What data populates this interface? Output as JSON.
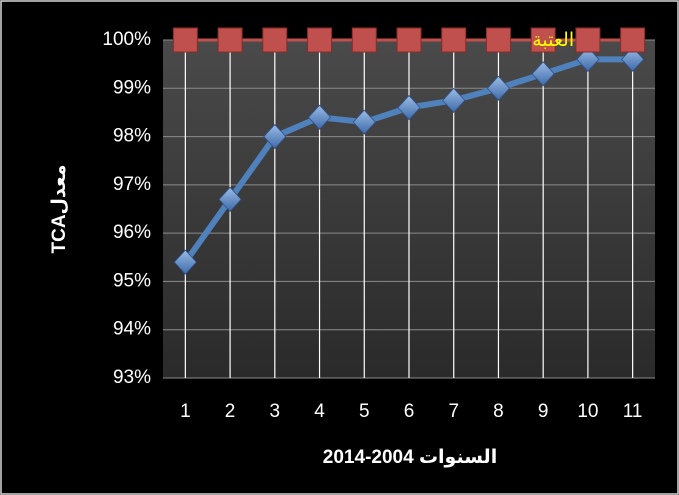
{
  "chart_data": {
    "type": "line",
    "x_label": "السنوات 2004-2014",
    "y_label": "معدلTCA",
    "categories": [
      "1",
      "2",
      "3",
      "4",
      "5",
      "6",
      "7",
      "8",
      "9",
      "10",
      "11"
    ],
    "series": [
      {
        "color": "#4f81bd",
        "values": [
          95.4,
          96.7,
          98.0,
          98.4,
          98.3,
          98.6,
          98.75,
          99.0,
          99.3,
          99.6,
          99.6
        ]
      },
      {
        "name": "العتبة",
        "color": "#c0504d",
        "values": [
          100,
          100,
          100,
          100,
          100,
          100,
          100,
          100,
          100,
          100,
          100
        ]
      }
    ],
    "ylim": [
      93,
      100
    ],
    "yticks": [
      {
        "value": 93,
        "label": "93%"
      },
      {
        "value": 94,
        "label": "94%"
      },
      {
        "value": 95,
        "label": "95%"
      },
      {
        "value": 96,
        "label": "96%"
      },
      {
        "value": 97,
        "label": "97%"
      },
      {
        "value": 98,
        "label": "98%"
      },
      {
        "value": 99,
        "label": "99%"
      },
      {
        "value": 100,
        "label": "100%"
      }
    ],
    "grid": true
  }
}
